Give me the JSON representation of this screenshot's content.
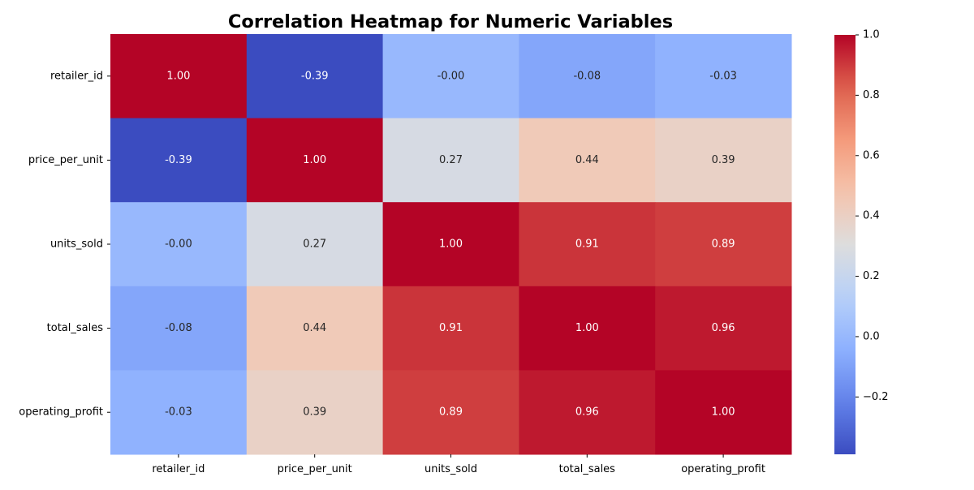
{
  "chart_data": {
    "type": "heatmap",
    "title": "Correlation Heatmap for Numeric Variables",
    "xlabel": "",
    "ylabel": "",
    "x_categories": [
      "retailer_id",
      "price_per_unit",
      "units_sold",
      "total_sales",
      "operating_profit"
    ],
    "y_categories": [
      "retailer_id",
      "price_per_unit",
      "units_sold",
      "total_sales",
      "operating_profit"
    ],
    "values": [
      [
        1.0,
        -0.39,
        -0.0,
        -0.08,
        -0.03
      ],
      [
        -0.39,
        1.0,
        0.27,
        0.44,
        0.39
      ],
      [
        -0.0,
        0.27,
        1.0,
        0.91,
        0.89
      ],
      [
        -0.08,
        0.44,
        0.91,
        1.0,
        0.96
      ],
      [
        -0.03,
        0.39,
        0.89,
        0.96,
        1.0
      ]
    ],
    "value_format": "0.00",
    "colormap": "coolwarm",
    "color_range": [
      -0.39,
      1.0
    ],
    "colorbar": {
      "ticks": [
        -0.2,
        0.0,
        0.2,
        0.4,
        0.6,
        0.8,
        1.0
      ],
      "tick_labels": [
        "−0.2",
        "0.0",
        "0.2",
        "0.4",
        "0.6",
        "0.8",
        "1.0"
      ],
      "placement": "right"
    },
    "grid": false
  }
}
